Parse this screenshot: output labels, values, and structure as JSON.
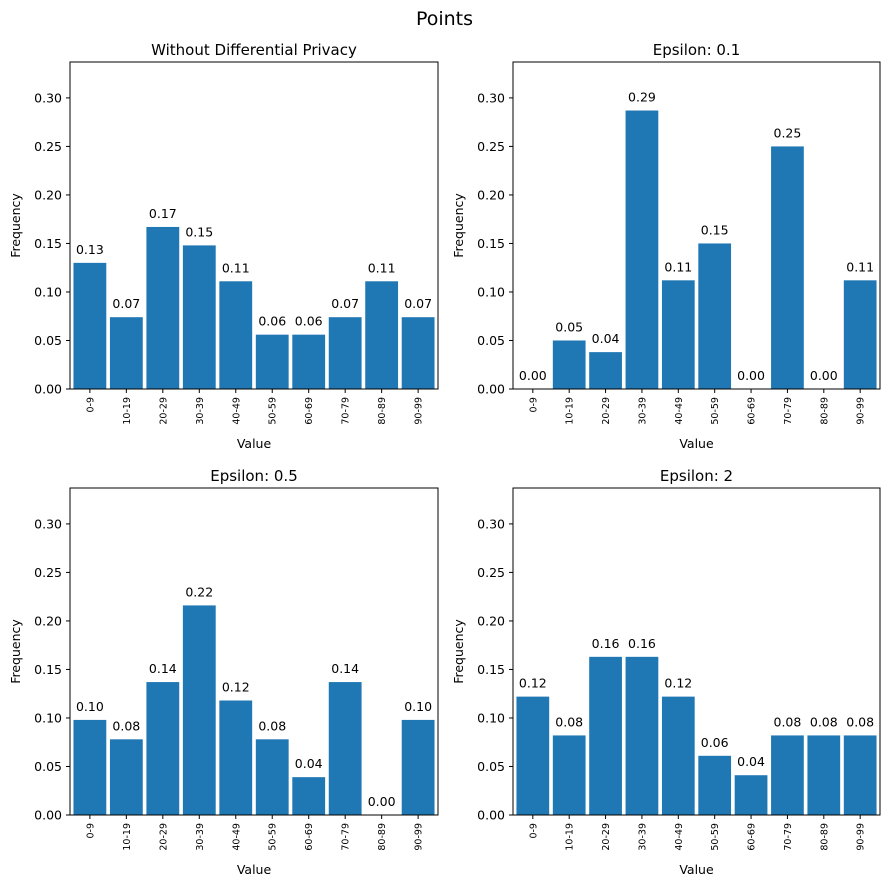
{
  "figure": {
    "title": "Points"
  },
  "chart_data": [
    {
      "type": "bar",
      "title": "Without Differential Privacy",
      "xlabel": "Value",
      "ylabel": "Frequency",
      "categories": [
        "0-9",
        "10-19",
        "20-29",
        "30-39",
        "40-49",
        "50-59",
        "60-69",
        "70-79",
        "80-89",
        "90-99"
      ],
      "values": [
        0.13,
        0.074,
        0.167,
        0.148,
        0.111,
        0.056,
        0.056,
        0.074,
        0.111,
        0.074
      ],
      "data_labels": [
        "0.13",
        "0.07",
        "0.17",
        "0.15",
        "0.11",
        "0.06",
        "0.06",
        "0.07",
        "0.11",
        "0.07"
      ],
      "ylim": [
        0,
        0.337
      ],
      "yticks": [
        "0.00",
        "0.05",
        "0.10",
        "0.15",
        "0.20",
        "0.25",
        "0.30"
      ],
      "color": "#1f77b4",
      "grid": false
    },
    {
      "type": "bar",
      "title": "Epsilon: 0.1",
      "xlabel": "Value",
      "ylabel": "Frequency",
      "categories": [
        "0-9",
        "10-19",
        "20-29",
        "30-39",
        "40-49",
        "50-59",
        "60-69",
        "70-79",
        "80-89",
        "90-99"
      ],
      "values": [
        0.0,
        0.05,
        0.038,
        0.287,
        0.112,
        0.15,
        0.0,
        0.25,
        0.0,
        0.112
      ],
      "data_labels": [
        "0.00",
        "0.05",
        "0.04",
        "0.29",
        "0.11",
        "0.15",
        "0.00",
        "0.25",
        "0.00",
        "0.11"
      ],
      "ylim": [
        0,
        0.337
      ],
      "yticks": [
        "0.00",
        "0.05",
        "0.10",
        "0.15",
        "0.20",
        "0.25",
        "0.30"
      ],
      "color": "#1f77b4",
      "grid": false
    },
    {
      "type": "bar",
      "title": "Epsilon: 0.5",
      "xlabel": "Value",
      "ylabel": "Frequency",
      "categories": [
        "0-9",
        "10-19",
        "20-29",
        "30-39",
        "40-49",
        "50-59",
        "60-69",
        "70-79",
        "80-89",
        "90-99"
      ],
      "values": [
        0.098,
        0.078,
        0.137,
        0.216,
        0.118,
        0.078,
        0.039,
        0.137,
        0.0,
        0.098
      ],
      "data_labels": [
        "0.10",
        "0.08",
        "0.14",
        "0.22",
        "0.12",
        "0.08",
        "0.04",
        "0.14",
        "0.00",
        "0.10"
      ],
      "ylim": [
        0,
        0.337
      ],
      "yticks": [
        "0.00",
        "0.05",
        "0.10",
        "0.15",
        "0.20",
        "0.25",
        "0.30"
      ],
      "color": "#1f77b4",
      "grid": false
    },
    {
      "type": "bar",
      "title": "Epsilon: 2",
      "xlabel": "Value",
      "ylabel": "Frequency",
      "categories": [
        "0-9",
        "10-19",
        "20-29",
        "30-39",
        "40-49",
        "50-59",
        "60-69",
        "70-79",
        "80-89",
        "90-99"
      ],
      "values": [
        0.122,
        0.082,
        0.163,
        0.163,
        0.122,
        0.061,
        0.041,
        0.082,
        0.082,
        0.082
      ],
      "data_labels": [
        "0.12",
        "0.08",
        "0.16",
        "0.16",
        "0.12",
        "0.06",
        "0.04",
        "0.08",
        "0.08",
        "0.08"
      ],
      "ylim": [
        0,
        0.337
      ],
      "yticks": [
        "0.00",
        "0.05",
        "0.10",
        "0.15",
        "0.20",
        "0.25",
        "0.30"
      ],
      "color": "#1f77b4",
      "grid": false
    }
  ]
}
